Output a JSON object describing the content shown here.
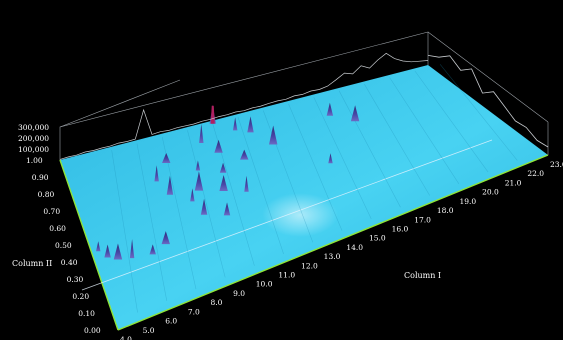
{
  "chart_data": {
    "type": "heatmap",
    "title": "",
    "subtitle": "",
    "xlabel": "Column I",
    "ylabel": "Column II",
    "zlabel": "",
    "x_ticks": [
      "4.0",
      "5.0",
      "6.0",
      "7.0",
      "8.0",
      "9.0",
      "10.0",
      "11.0",
      "12.0",
      "13.0",
      "14.0",
      "15.0",
      "16.0",
      "17.0",
      "18.0",
      "19.0",
      "20.0",
      "21.0",
      "22.0",
      "23.0"
    ],
    "y_ticks": [
      "0.00",
      "0.10",
      "0.20",
      "0.30",
      "0.40",
      "0.50",
      "0.60",
      "0.70",
      "0.80",
      "0.90",
      "1.00"
    ],
    "z_ticks": [
      "100,000",
      "200,000",
      "300,000"
    ],
    "xlim": [
      4.0,
      23.0
    ],
    "ylim": [
      0.0,
      1.0
    ],
    "zlim": [
      0,
      300000
    ],
    "surface_color": "#3cc8ec",
    "peak_color": "#3a2a8a",
    "peaks": [
      {
        "x": 4.3,
        "y": 0.45
      },
      {
        "x": 4.6,
        "y": 0.4
      },
      {
        "x": 5.0,
        "y": 0.37
      },
      {
        "x": 5.6,
        "y": 0.35
      },
      {
        "x": 6.5,
        "y": 0.33
      },
      {
        "x": 7.2,
        "y": 0.36
      },
      {
        "x": 8.0,
        "y": 0.73
      },
      {
        "x": 8.3,
        "y": 0.63
      },
      {
        "x": 8.8,
        "y": 0.82
      },
      {
        "x": 9.1,
        "y": 0.55
      },
      {
        "x": 9.3,
        "y": 0.45
      },
      {
        "x": 9.6,
        "y": 0.6
      },
      {
        "x": 10.0,
        "y": 0.72
      },
      {
        "x": 10.2,
        "y": 0.4
      },
      {
        "x": 10.6,
        "y": 0.55
      },
      {
        "x": 10.8,
        "y": 0.88
      },
      {
        "x": 11.0,
        "y": 0.66
      },
      {
        "x": 11.3,
        "y": 0.79
      },
      {
        "x": 11.5,
        "y": 0.5
      },
      {
        "x": 11.8,
        "y": 0.98
      },
      {
        "x": 12.2,
        "y": 0.7
      },
      {
        "x": 12.6,
        "y": 0.9
      },
      {
        "x": 13.2,
        "y": 0.86
      },
      {
        "x": 13.8,
        "y": 0.74
      },
      {
        "x": 15.5,
        "y": 0.5
      },
      {
        "x": 17.0,
        "y": 0.82
      },
      {
        "x": 17.8,
        "y": 0.73
      }
    ],
    "tic_trace": [
      0.02,
      0.03,
      0.02,
      0.05,
      0.03,
      0.04,
      0.03,
      0.06,
      0.04,
      0.05,
      0.95,
      0.06,
      0.08,
      0.05,
      0.07,
      0.06,
      0.05,
      0.07,
      0.06,
      0.08,
      0.07,
      0.09,
      0.06,
      0.08,
      0.07,
      0.09,
      0.1,
      0.08,
      0.12,
      0.1,
      0.14,
      0.12,
      0.16,
      0.3,
      0.45,
      0.35,
      0.55,
      0.4,
      0.6,
      0.75,
      0.5,
      0.35,
      0.25,
      0.2,
      0.15
    ]
  }
}
